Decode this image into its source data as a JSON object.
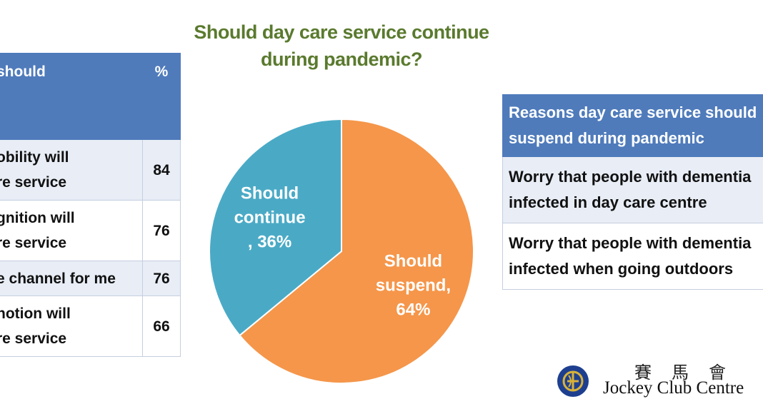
{
  "chart_data": {
    "type": "pie",
    "title_lines": [
      "Should day care service continue",
      "during pandemic?"
    ],
    "slices": [
      {
        "label": "Should suspend, 64%",
        "label_lines": [
          "Should",
          "suspend,",
          "64%"
        ],
        "value": 64,
        "color": "#f5964a"
      },
      {
        "label": "Should continue , 36%",
        "label_lines": [
          "Should",
          "continue",
          ", 36%"
        ],
        "value": 36,
        "color": "#4aaac6"
      }
    ]
  },
  "left_table": {
    "header": {
      "reason_lines": [
        "should",
        ":"
      ],
      "pct": "%"
    },
    "rows": [
      {
        "lines": [
          "obility will",
          "re service"
        ],
        "value": "84",
        "shaded": true
      },
      {
        "lines": [
          "gnition will",
          "re service"
        ],
        "value": "76",
        "shaded": false
      },
      {
        "lines": [
          "e channel for me"
        ],
        "value": "76",
        "shaded": true
      },
      {
        "lines": [
          "notion will",
          "re service"
        ],
        "value": "66",
        "shaded": false
      }
    ]
  },
  "right_table": {
    "header_lines": [
      "Reasons day care service should",
      "suspend during pandemic"
    ],
    "rows": [
      {
        "lines": [
          "Worry that people with dementia",
          "infected in day care centre"
        ],
        "shaded": true
      },
      {
        "lines": [
          "Worry that people with dementia",
          "infected when going outdoors"
        ],
        "shaded": false
      }
    ]
  },
  "logo": {
    "chinese": "賽馬會",
    "english": "Jockey Club Centre",
    "colors": {
      "blue": "#1e3f8f",
      "gold": "#d8b23a"
    }
  }
}
